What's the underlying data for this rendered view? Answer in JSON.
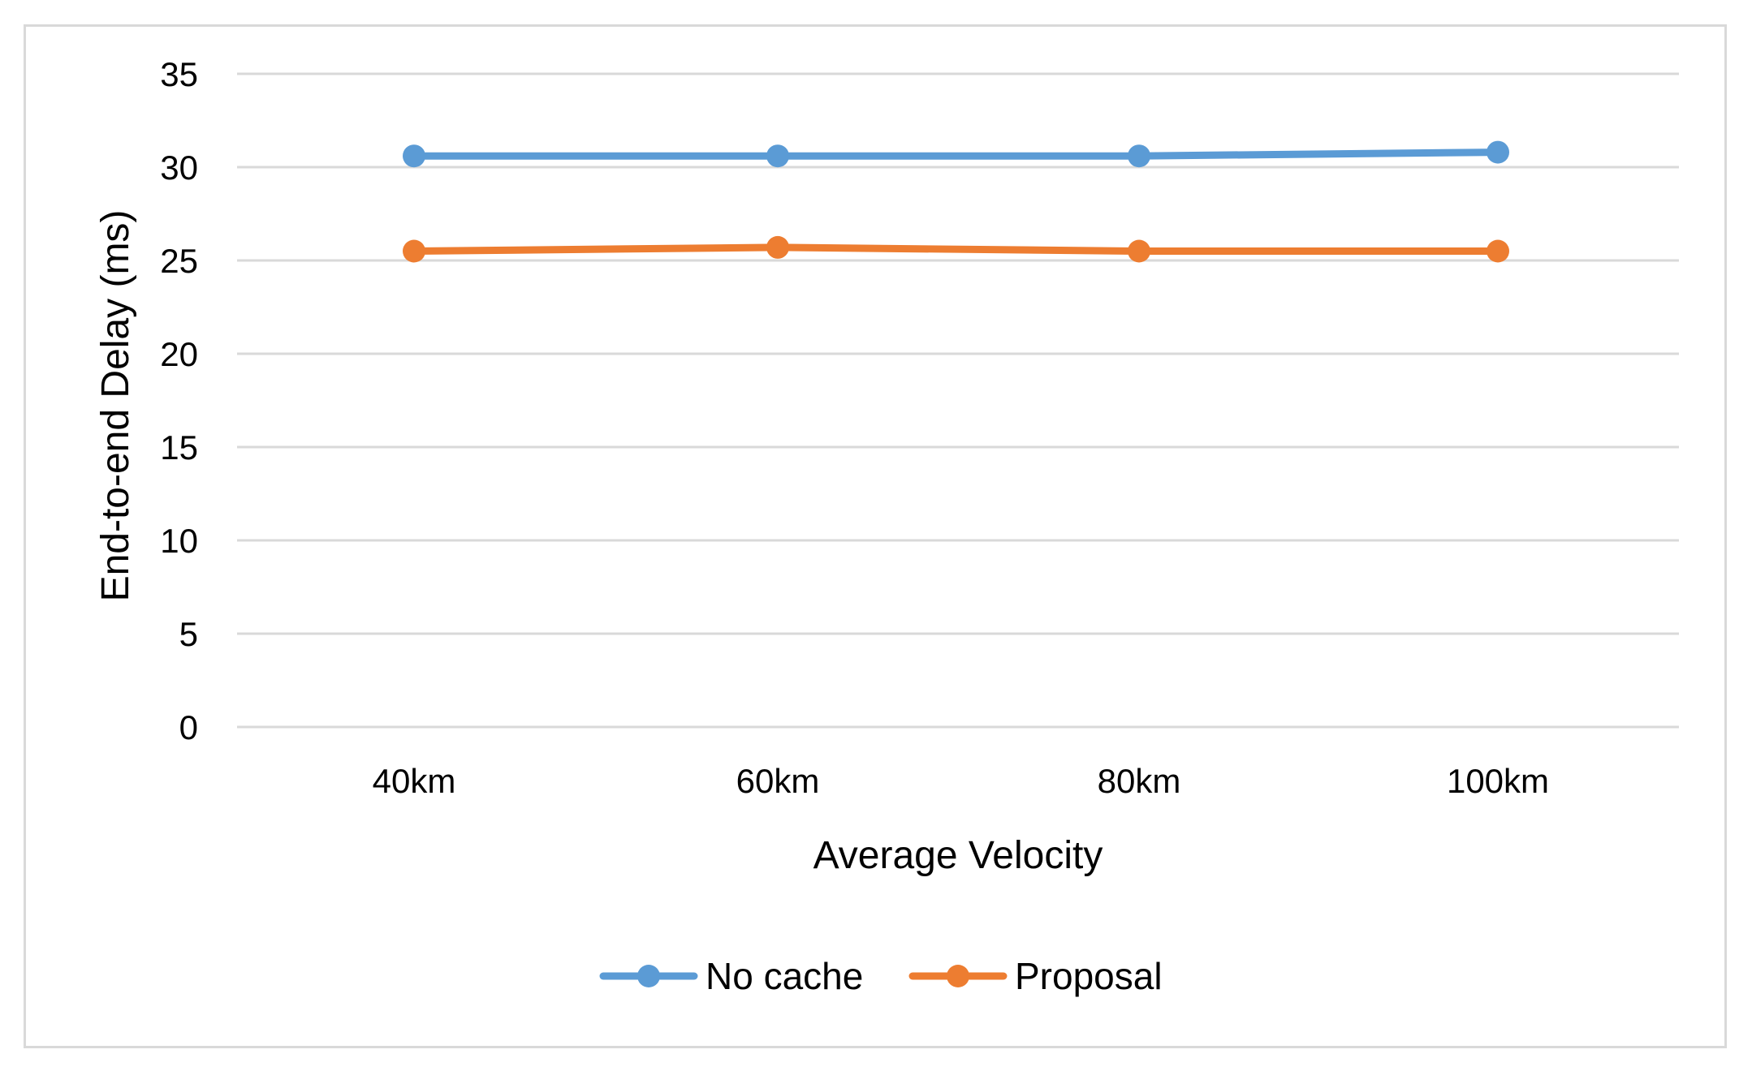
{
  "chart_data": {
    "type": "line",
    "title": "",
    "xlabel": "Average Velocity",
    "ylabel": "End-to-end Delay (ms)",
    "categories": [
      "40km",
      "60km",
      "80km",
      "100km"
    ],
    "ylim": [
      0,
      35
    ],
    "yticks": [
      0,
      5,
      10,
      15,
      20,
      25,
      30,
      35
    ],
    "grid": true,
    "legend_position": "bottom",
    "series": [
      {
        "name": "No cache",
        "values": [
          30.6,
          30.6,
          30.6,
          30.8
        ],
        "color": "#5b9bd5"
      },
      {
        "name": "Proposal",
        "values": [
          25.5,
          25.7,
          25.5,
          25.5
        ],
        "color": "#ed7d31"
      }
    ]
  },
  "colors": {
    "grid": "#d9d9d9",
    "frame": "#d9d9d9"
  }
}
